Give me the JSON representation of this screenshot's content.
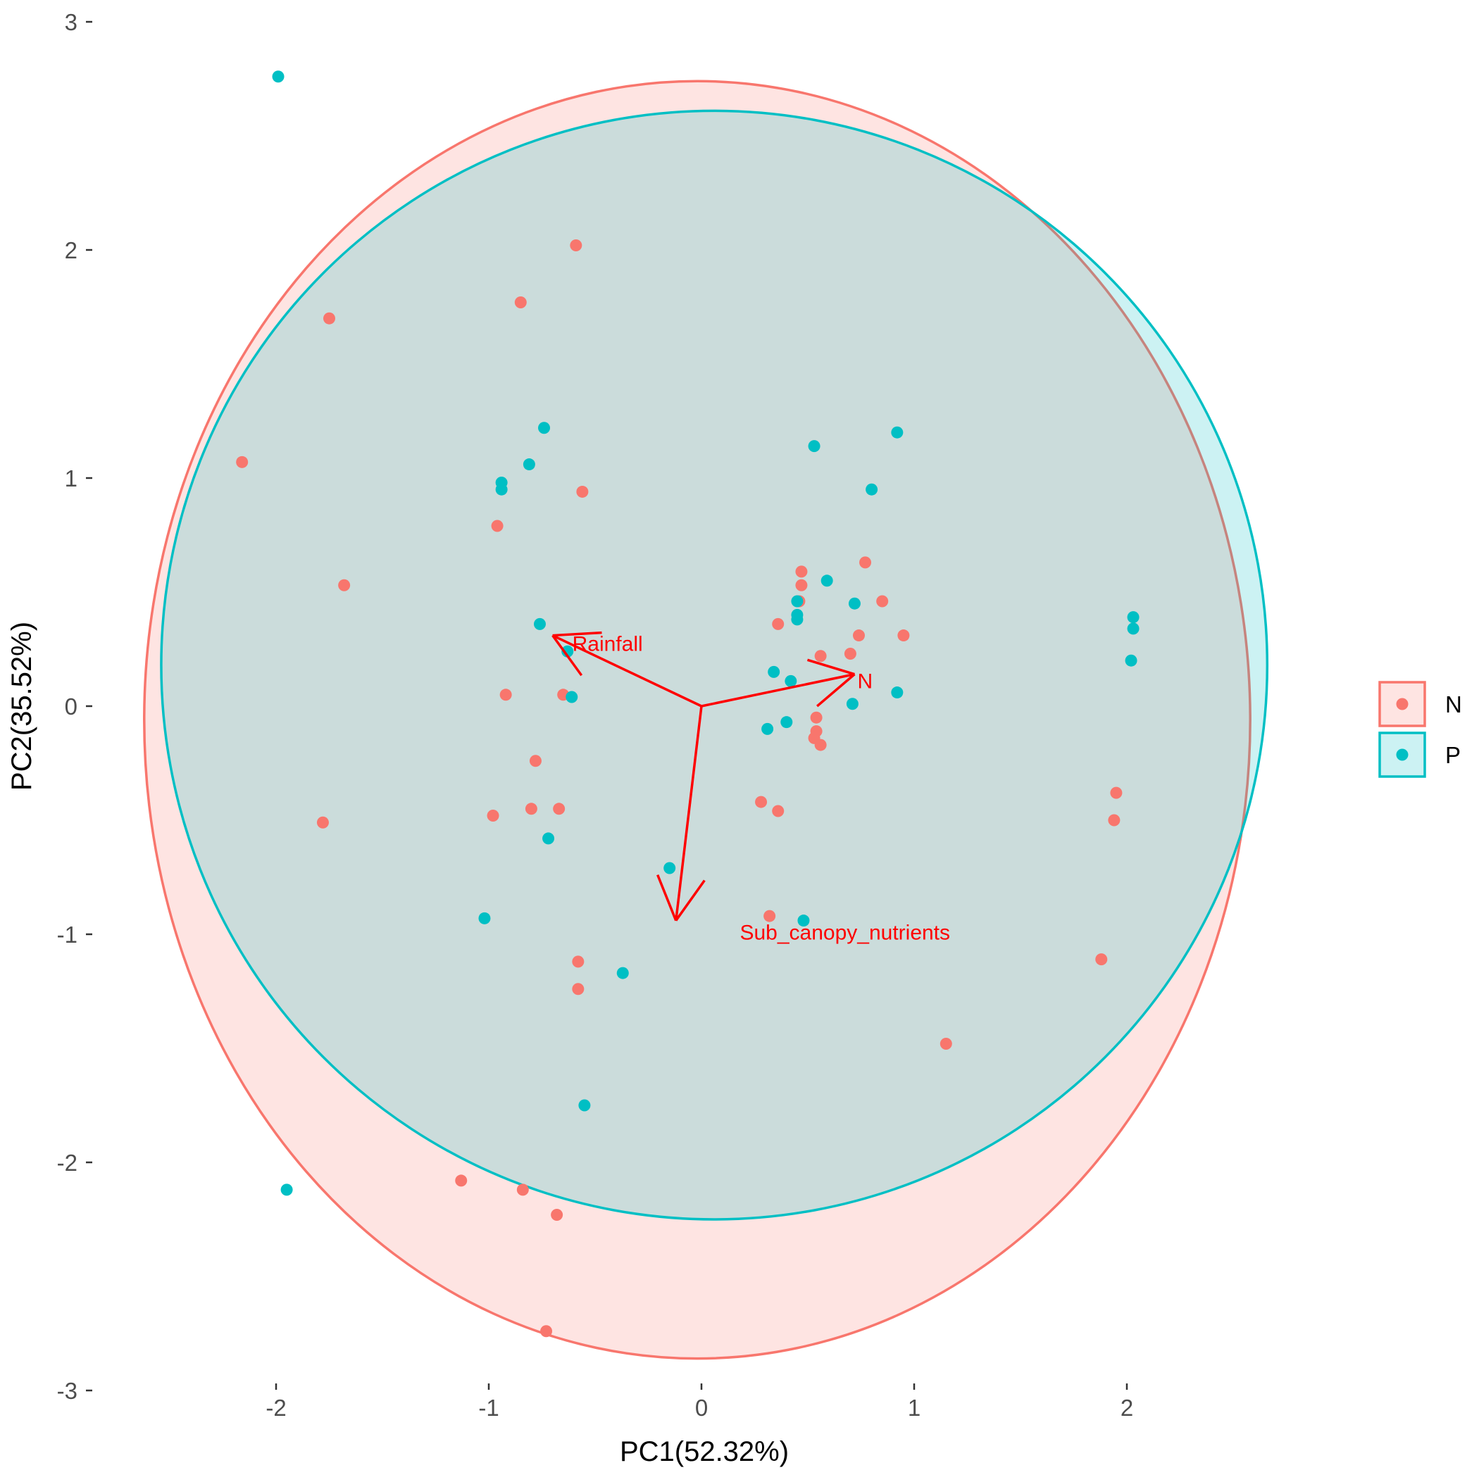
{
  "chart_data": {
    "type": "scatter",
    "title": "",
    "xlabel": "PC1(52.32%)",
    "ylabel": "PC2(35.52%)",
    "xlim": [
      -3.3,
      3.0
    ],
    "ylim": [
      -3.05,
      3.05
    ],
    "x_ticks": [
      -2,
      -1,
      0,
      1,
      2
    ],
    "y_ticks": [
      -3,
      -2,
      -1,
      0,
      1,
      2,
      3
    ],
    "grid": false,
    "legend_position": "right",
    "series": [
      {
        "name": "N",
        "color": "#F8766D",
        "fill": "#F8766D",
        "ellipse": {
          "center": [
            -0.02,
            -0.06
          ],
          "semi_axes": [
            2.6,
            2.8
          ]
        },
        "points": [
          [
            -0.59,
            2.02
          ],
          [
            -0.85,
            1.77
          ],
          [
            -1.75,
            1.7
          ],
          [
            -2.16,
            1.07
          ],
          [
            -0.56,
            0.94
          ],
          [
            -0.96,
            0.79
          ],
          [
            -1.68,
            0.53
          ],
          [
            0.47,
            0.59
          ],
          [
            0.47,
            0.53
          ],
          [
            0.77,
            0.63
          ],
          [
            0.85,
            0.46
          ],
          [
            0.46,
            0.46
          ],
          [
            0.36,
            0.36
          ],
          [
            0.74,
            0.31
          ],
          [
            0.95,
            0.31
          ],
          [
            0.56,
            0.22
          ],
          [
            0.7,
            0.23
          ],
          [
            -0.92,
            0.05
          ],
          [
            -0.65,
            0.05
          ],
          [
            0.54,
            -0.05
          ],
          [
            0.54,
            -0.11
          ],
          [
            0.53,
            -0.14
          ],
          [
            0.56,
            -0.17
          ],
          [
            -0.78,
            -0.24
          ],
          [
            0.28,
            -0.42
          ],
          [
            0.36,
            -0.46
          ],
          [
            -1.78,
            -0.51
          ],
          [
            -0.98,
            -0.48
          ],
          [
            -0.8,
            -0.45
          ],
          [
            -0.67,
            -0.45
          ],
          [
            1.95,
            -0.38
          ],
          [
            1.94,
            -0.5
          ],
          [
            0.32,
            -0.92
          ],
          [
            -0.58,
            -1.12
          ],
          [
            -0.58,
            -1.24
          ],
          [
            1.88,
            -1.11
          ],
          [
            1.15,
            -1.48
          ],
          [
            -1.13,
            -2.08
          ],
          [
            -0.84,
            -2.12
          ],
          [
            -0.68,
            -2.23
          ],
          [
            -0.73,
            -2.74
          ]
        ]
      },
      {
        "name": "P",
        "color": "#00BFC4",
        "fill": "#00BFC4",
        "ellipse": {
          "center": [
            0.06,
            0.18
          ],
          "semi_axes": [
            2.6,
            2.43
          ]
        },
        "points": [
          [
            -1.99,
            2.76
          ],
          [
            -0.74,
            1.22
          ],
          [
            -0.81,
            1.06
          ],
          [
            -0.94,
            0.98
          ],
          [
            -0.94,
            0.95
          ],
          [
            0.53,
            1.14
          ],
          [
            0.92,
            1.2
          ],
          [
            0.8,
            0.95
          ],
          [
            0.59,
            0.55
          ],
          [
            0.45,
            0.46
          ],
          [
            0.45,
            0.4
          ],
          [
            0.45,
            0.38
          ],
          [
            0.72,
            0.45
          ],
          [
            -0.76,
            0.36
          ],
          [
            -0.63,
            0.24
          ],
          [
            -0.61,
            0.04
          ],
          [
            0.34,
            0.15
          ],
          [
            0.42,
            0.11
          ],
          [
            0.71,
            0.01
          ],
          [
            0.92,
            0.06
          ],
          [
            2.03,
            0.39
          ],
          [
            2.03,
            0.34
          ],
          [
            2.02,
            0.2
          ],
          [
            0.31,
            -0.1
          ],
          [
            0.4,
            -0.07
          ],
          [
            -0.72,
            -0.58
          ],
          [
            -0.15,
            -0.71
          ],
          [
            -1.02,
            -0.93
          ],
          [
            0.48,
            -0.94
          ],
          [
            -0.37,
            -1.17
          ],
          [
            -0.55,
            -1.75
          ],
          [
            -1.95,
            -2.12
          ]
        ]
      }
    ],
    "vectors": [
      {
        "label": "Rainfall",
        "to": [
          -0.7,
          0.31
        ],
        "color": "#FF0000"
      },
      {
        "label": "N",
        "to": [
          0.72,
          0.14
        ],
        "color": "#FF0000"
      },
      {
        "label": "Sub_canopy_nutrients",
        "to": [
          -0.12,
          -0.94
        ],
        "color": "#FF0000"
      }
    ]
  }
}
